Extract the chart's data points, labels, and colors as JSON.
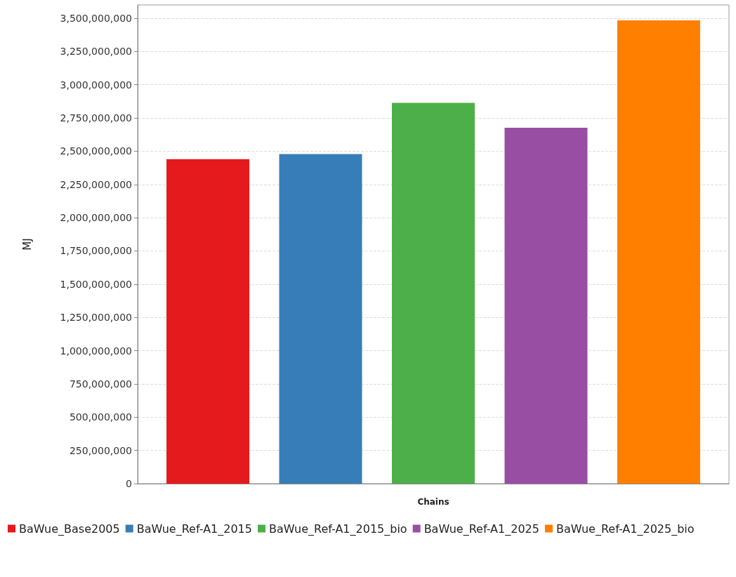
{
  "chart_data": {
    "type": "bar",
    "xlabel": "Chains",
    "ylabel": "MJ",
    "categories": [
      null
    ],
    "series": [
      {
        "name": "BaWue_Base2005",
        "color": "#e41a1c",
        "values": [
          2440000000
        ]
      },
      {
        "name": "BaWue_Ref-A1_2015",
        "color": "#377eb8",
        "values": [
          2478000000
        ]
      },
      {
        "name": "BaWue_Ref-A1_2015_bio",
        "color": "#4daf4a",
        "values": [
          2863000000
        ]
      },
      {
        "name": "BaWue_Ref-A1_2025",
        "color": "#984ea3",
        "values": [
          2676000000
        ]
      },
      {
        "name": "BaWue_Ref-A1_2025_bio",
        "color": "#ff7f00",
        "values": [
          3484000000
        ]
      }
    ],
    "ylim": [
      0,
      3600000000
    ],
    "yticks": [
      {
        "value": 0,
        "label": "0"
      },
      {
        "value": 250000000,
        "label": "250,000,000"
      },
      {
        "value": 500000000,
        "label": "500,000,000"
      },
      {
        "value": 750000000,
        "label": "750,000,000"
      },
      {
        "value": 1000000000,
        "label": "1,000,000,000"
      },
      {
        "value": 1250000000,
        "label": "1,250,000,000"
      },
      {
        "value": 1500000000,
        "label": "1,500,000,000"
      },
      {
        "value": 1750000000,
        "label": "1,750,000,000"
      },
      {
        "value": 2000000000,
        "label": "2,000,000,000"
      },
      {
        "value": 2250000000,
        "label": "2,250,000,000"
      },
      {
        "value": 2500000000,
        "label": "2,500,000,000"
      },
      {
        "value": 2750000000,
        "label": "2,750,000,000"
      },
      {
        "value": 3000000000,
        "label": "3,000,000,000"
      },
      {
        "value": 3250000000,
        "label": "3,250,000,000"
      },
      {
        "value": 3500000000,
        "label": "3,500,000,000"
      }
    ],
    "grid": "y",
    "legend": "bottom"
  }
}
